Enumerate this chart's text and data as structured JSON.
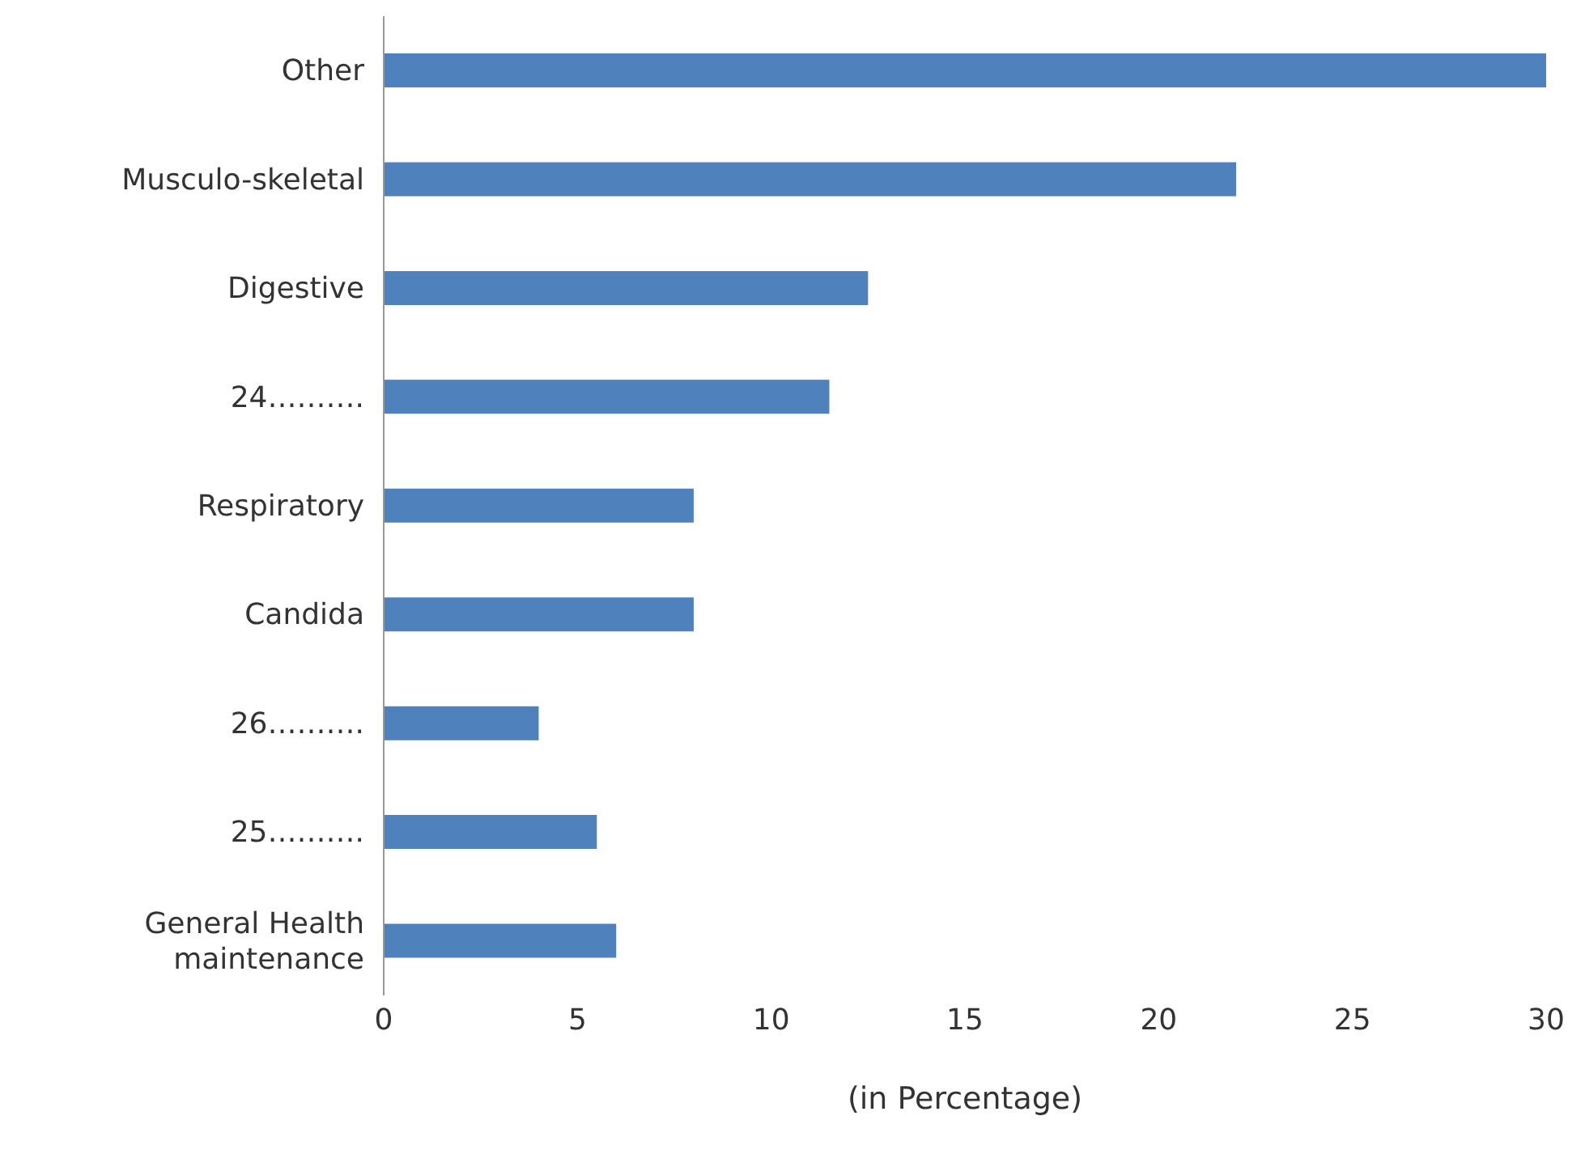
{
  "chart_data": {
    "type": "bar",
    "orientation": "horizontal",
    "xlabel": "(in Percentage)",
    "categories": [
      "Other",
      "Musculo-skeletal",
      "Digestive",
      "24……….",
      "Respiratory",
      "Candida",
      "26……….",
      "25……….",
      "General Health maintenance"
    ],
    "values": [
      30,
      22,
      12.5,
      11.5,
      8,
      8,
      4,
      5.5,
      6
    ],
    "color": "#4f81bd",
    "xlim": [
      0,
      30
    ],
    "xticks": [
      0,
      5,
      10,
      15,
      20,
      25,
      30
    ],
    "grid": false,
    "legend": false
  }
}
